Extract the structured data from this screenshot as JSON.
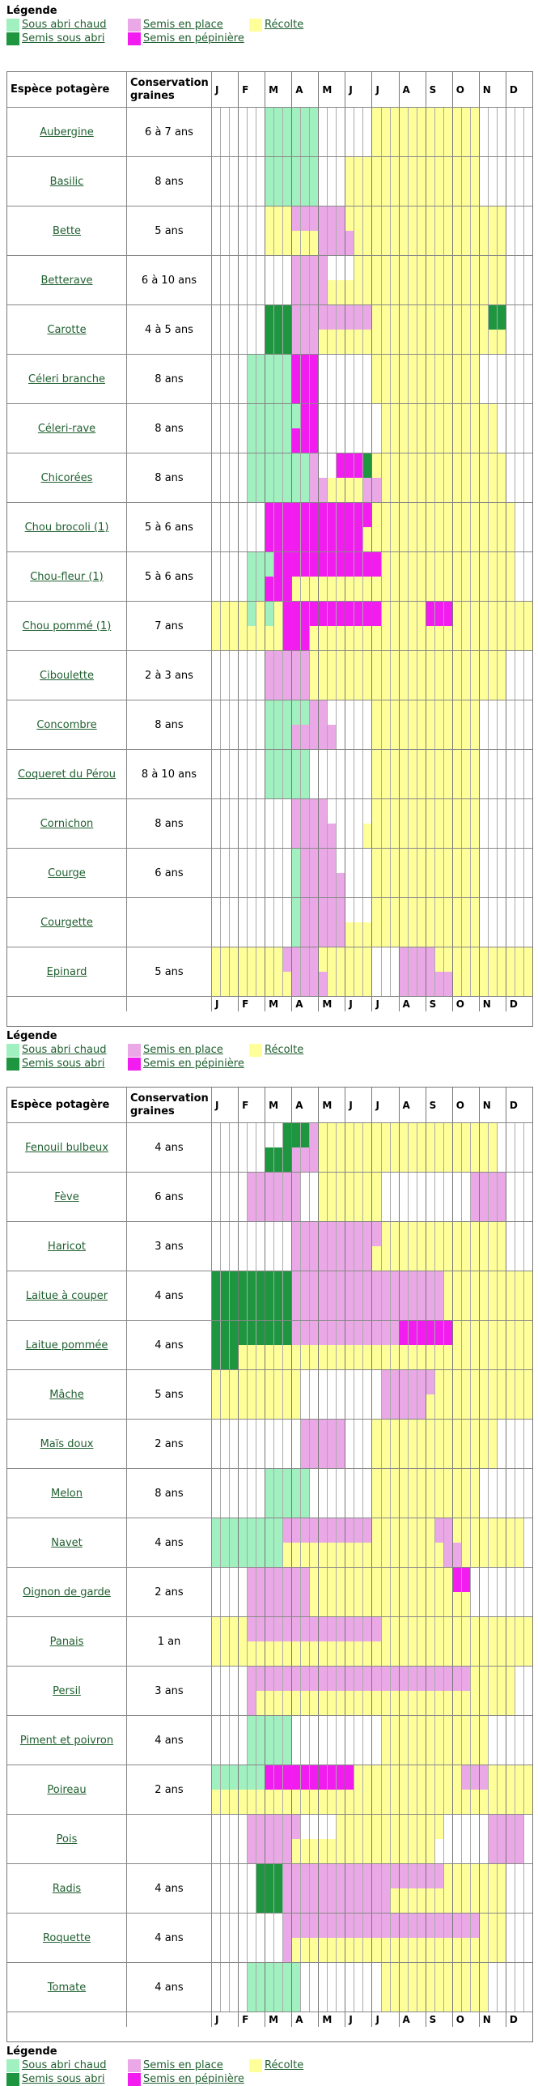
{
  "colors": {
    "a": "#a0f0c0",
    "s": "#1e9640",
    "p": "#eaa8e6",
    "n": "#f21cf0",
    "r": "#ffff99",
    "w": "#ffffff"
  },
  "legend": {
    "title": "Légende",
    "items": [
      {
        "code": "a",
        "label": "Sous abri chaud"
      },
      {
        "code": "p",
        "label": "Semis en place"
      },
      {
        "code": "r",
        "label": "Récolte"
      },
      {
        "code": "s",
        "label": "Semis sous abri"
      },
      {
        "code": "n",
        "label": "Semis en pépinière"
      }
    ]
  },
  "table_header": {
    "species": "Espèce potagère",
    "conservation": "Conservation graines",
    "months": [
      "J",
      "F",
      "M",
      "A",
      "M",
      "J",
      "J",
      "A",
      "S",
      "O",
      "N",
      "D"
    ]
  },
  "tables": [
    {
      "rows": [
        {
          "name": "Aubergine",
          "conservation": "6 à 7 ans",
          "t": "wwwwwwaaaaaawwwwwwrrrrrrrrrrrrwwwwww",
          "b": "wwwwwwaaaaaawwwwwwrrrrrrrrrrrrwwwwww"
        },
        {
          "name": "Basilic",
          "conservation": "8 ans",
          "t": "wwwwwwaaaaaawwwrrrrrrrrrrrrrrrwwwwww",
          "b": "wwwwwwaaaaaawwwrrrrrrrrrrrrrrrwwwwww"
        },
        {
          "name": "Bette",
          "conservation": "5 ans",
          "t": "wwwwwwrrrpppppprrrrrrrrrrrrrrrrrrwww",
          "b": "wwwwwwrrrrrrpppprrrrrrrrrrrrrrrrrwww"
        },
        {
          "name": "Betterave",
          "conservation": "6 à 10 ans",
          "t": "wwwwwwwwwppppwwwrrrrrrrrrrrrrrrrrwww",
          "b": "wwwwwwwwwpppprrrrrrrrrrrrrrrrrrrrwww"
        },
        {
          "name": "Carotte",
          "conservation": "4 à 5 ans",
          "t": "wwwwwwsssppppppppprrrrrrrrrrrrrsswww",
          "b": "wwwwwwsssppprrrrrrrrrrrrrrrrrrrrrwww"
        },
        {
          "name": "Céleri branche",
          "conservation": "8 ans",
          "t": "wwwwaaaaannnwwwwwwrrrrrrrrrrrrwwwwww",
          "b": "wwwwaaaaannnwwwwwwrrrrrrrrrrrrwwwwww"
        },
        {
          "name": "Céleri-rave",
          "conservation": "8 ans",
          "t": "wwwwaaaaaannwwwwwwwrrrrrrrrrrrrrwwww",
          "b": "wwwwaaaaannnwwwwwwwrrrrrrrrrrrrrwwww"
        },
        {
          "name": "Chicorées",
          "conservation": "8 ans",
          "t": "wwwwaaaaaaapwwnnnsrrrrrrrrrrrrrrrwww",
          "b": "wwwwaaaaaaapprrrrpprrrrrrrrrrrrrrwww"
        },
        {
          "name": "Chou brocoli (1)",
          "conservation": "5 à 6 ans",
          "t": "wwwwwwnnnnnnnnnnnnrrrrrrrrrrrrrrrrww",
          "b": "wwwwwwnnnnnnnnnnnrrrrrrrrrrrrrrrrrww"
        },
        {
          "name": "Chou-fleur (1)",
          "conservation": "5 à 6 ans",
          "t": "wwwwaaannnnnnnnnnnnrrrrrrrrrrrrrrrww",
          "b": "wwwwaannnrrrrrrrrrrrrrrrrrrrrrrrrrww"
        },
        {
          "name": "Chou pommé (1)",
          "conservation": "7 ans",
          "t": "rrrrararnnnnnnnnnnnrrrrrnnnrrrrrrrrr",
          "b": "rrrrrrrrnnnrrrrrrrrrrrrrrrrrrrrrrrrr"
        },
        {
          "name": "Ciboulette",
          "conservation": "2 à 3 ans",
          "t": "wwwwwwppppprrrrrrrrrrrrrrrrrrrrrrwww",
          "b": "wwwwwwppppprrrrrrrrrrrrrrrrrrrrrrwww"
        },
        {
          "name": "Concombre",
          "conservation": "8 ans",
          "t": "wwwwwwaaaaappwwwwwrrrrrrrrrrrrwwwwww",
          "b": "wwwwwwaaapppppwwwwrrrrrrrrrrrrwwwwww"
        },
        {
          "name": "Coqueret du Pérou",
          "conservation": "8 à 10 ans",
          "t": "wwwwwwaaaaawwwwwwwrrrrrrrrrrrrwwwwww",
          "b": "wwwwwwaaaaawwwwwwwrrrrrrrrrrrrwwwwww"
        },
        {
          "name": "Cornichon",
          "conservation": "8 ans",
          "t": "wwwwwwwwwppppwwwwwrrrrrrrrrrrrwwwwww",
          "b": "wwwwwwwwwpppppwwwrrrrrrrrrrrrrwwwwww"
        },
        {
          "name": "Courge",
          "conservation": "6 ans",
          "t": "wwwwwwwwwappppwwwwrrrrrrrrrrrrwwwwww",
          "b": "wwwwwwwwwapppppwwwrrrrrrrrrrrrwwwwww"
        },
        {
          "name": "Courgette",
          "conservation": "",
          "t": "wwwwwwwwwapppppwwwrrrrrrrrrrrrwwwwww",
          "b": "wwwwwwwwwappppprrrrrrrrrrrrrrrwwwwww"
        },
        {
          "name": "Epinard",
          "conservation": "5 ans",
          "t": "rrrrrrrrpppprrrrrrwwwpppprrrrrrrrrrr",
          "b": "rrrrrrrrrpppprrrrrwwwpppppprrrrrrrrr"
        }
      ]
    },
    {
      "rows": [
        {
          "name": "Fenouil bulbeux",
          "conservation": "4 ans",
          "t": "wwwwwwwwsssprrrrrrrrrrrrrrrrrrrrwwww",
          "b": "wwwwwwsssppprrrrrrrrrrrrrrrrrrrrwwww"
        },
        {
          "name": "Fève",
          "conservation": "6 ans",
          "t": "wwwwppppppwwrrrrrrrwwwwwwwwwwppppwww",
          "b": "wwwwppppppwwrrrrrrrwwwwwwwwwwppppwww"
        },
        {
          "name": "Haricot",
          "conservation": "3 ans",
          "t": "wwwwwwwwwpppppppppprrrrrrrrrrrrrrwww",
          "b": "wwwwwwwwwppppppppprrrrrrrrrrrrrrrwww"
        },
        {
          "name": "Laitue à couper",
          "conservation": "4 ans",
          "t": "sssssssssppppppppppppppppprrrrrrrrrrr",
          "b": "sssssssssppppppppppppppppprrrrrrrrrrr"
        },
        {
          "name": "Laitue pommée",
          "conservation": "4 ans",
          "t": "sssssssssppppppppppppnnnnnnrrrrrrrrrr",
          "b": "sssrrrrrrrrrrrrrrrrrrrrrrrrrrrrrrrrr"
        },
        {
          "name": "Mâche",
          "conservation": "5 ans",
          "t": "rrrrrrrrrrwwwwwwwwwpppppprrrrrrrrrrrr",
          "b": "rrrrrrrrrrwwwwwwwwwppppprrrrrrrrrrrrr"
        },
        {
          "name": "Maïs doux",
          "conservation": "2 ans",
          "t": "wwwwwwwwwwpppppwwwrrrrrrrrrrrrrrwwww",
          "b": "wwwwwwwwwwpppppwwwrrrrrrrrrrrrrrwwww"
        },
        {
          "name": "Melon",
          "conservation": "8 ans",
          "t": "wwwwwwaaaaawwwwwwwrrrrrrrrrrrrwwwwww",
          "b": "wwwwwwaaaaawwwwwwwrrrrrrrrrrrrwwwwww"
        },
        {
          "name": "Navet",
          "conservation": "4 ans",
          "t": "aaaaaaaapppppppppprrrrrrrpprrrrrrrrwww",
          "b": "aaaaaaaarrrrrrrrrrrrrrrrrrpprrrrrrrwww"
        },
        {
          "name": "Oignon de garde",
          "conservation": "2 ans",
          "t": "wwwwppppppprrrrrrrrrrrrrrrrnnwwwwwwwww",
          "b": "wwwwppppppprrrrrrrrrrrrrrrrrrwwwwwwww"
        },
        {
          "name": "Panais",
          "conservation": "1 an",
          "t": "rrrrppppppppppppppprrrrrrrrrrrrrrrrr",
          "b": "rrrrrrrrrrrrrrrrrrrrrrrrrrrrrrrrrrrr"
        },
        {
          "name": "Persil",
          "conservation": "3 ans",
          "t": "wwwwppppppppppppppppppppppppprrrrrwww",
          "b": "wwwwprrrrrrrrrrrrrrrrrrrrrrrrrrrrrwww"
        },
        {
          "name": "Piment et poivron",
          "conservation": "4 ans",
          "t": "wwwwaaaaawwwwwwwwwwrrrrrrrrrrrrwwwww",
          "b": "wwwwaaaaawwwwwwwwwwrrrrrrrrrrrrwwwww"
        },
        {
          "name": "Poireau",
          "conservation": "2 ans",
          "t": "aaaaaannnnnnnnnnrrrrrrrrrrrrppprrrrrr",
          "b": "rrrrrrrrrrrrrrrrrrrrrrrrrrrrrrrrrrrr"
        },
        {
          "name": "Pois",
          "conservation": "",
          "t": "wwwwppppppwwwwrrrrrrrrrrrrwwwwwppppww",
          "b": "wwwwppppprrrrrrrrrrrrrrrrwwwwwwppppww"
        },
        {
          "name": "Radis",
          "conservation": "4 ans",
          "t": "wwwwwssspppppppppppppppppprrrrrrrwww",
          "b": "wwwwwssspppppppppppprrrrrrrrrrrrrwww"
        },
        {
          "name": "Roquette",
          "conservation": "4 ans",
          "t": "wwwwwwwwpppppppppppppppppppppprrrwww",
          "b": "wwwwwwwwprrrrrrrrrrrrrrrrrrrrrrrrwww"
        },
        {
          "name": "Tomate",
          "conservation": "4 ans",
          "t": "wwwwaaaaaawwwwwwwwwrrrrrrrrrrrrwwwww",
          "b": "wwwwaaaaaawwwwwwwwwrrrrrrrrrrrrwwwww"
        }
      ]
    }
  ]
}
